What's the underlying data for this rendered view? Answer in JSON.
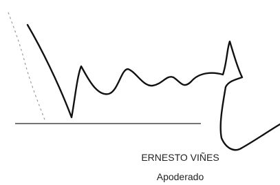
{
  "signature": {
    "name": "ERNESTO VIÑES",
    "role": "Apoderado"
  }
}
